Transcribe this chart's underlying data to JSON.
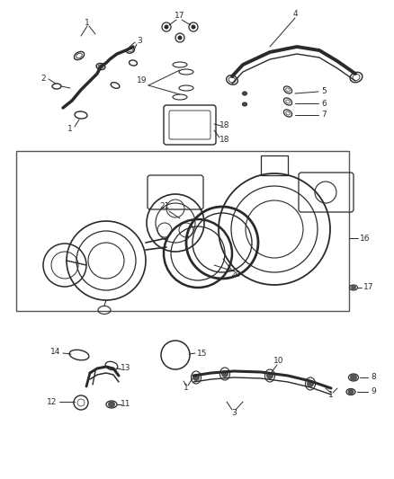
{
  "bg_color": "#ffffff",
  "fig_width": 4.38,
  "fig_height": 5.33,
  "dpi": 100,
  "line_color": "#2a2a2a",
  "box_color": "#444444"
}
